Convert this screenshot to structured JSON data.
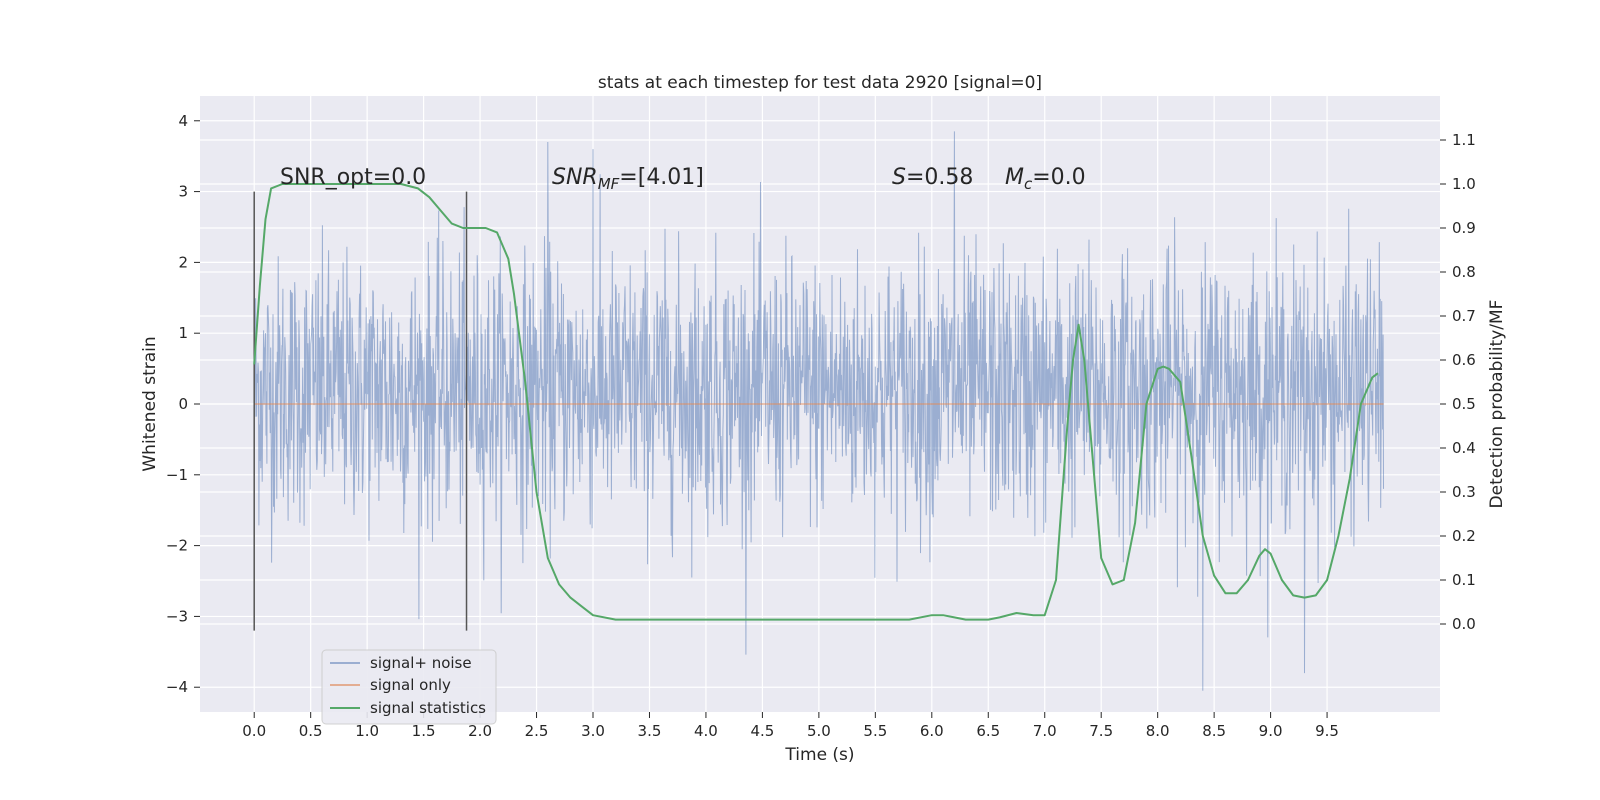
{
  "chart_data": {
    "type": "line",
    "title": "stats at each timestep for test data 2920 [signal=0]",
    "xlabel": "Time (s)",
    "ylabel": "Whitened strain",
    "y2label": "Detection probability/MF",
    "xlim": [
      -0.48,
      10.5
    ],
    "ylim": [
      -4.35,
      4.35
    ],
    "y2lim": [
      -0.2,
      1.2
    ],
    "x_ticks": [
      0.0,
      0.5,
      1.0,
      1.5,
      2.0,
      2.5,
      3.0,
      3.5,
      4.0,
      4.5,
      5.0,
      5.5,
      6.0,
      6.5,
      7.0,
      7.5,
      8.0,
      8.5,
      9.0,
      9.5
    ],
    "x_tick_labels": [
      "0.0",
      "0.5",
      "1.0",
      "1.5",
      "2.0",
      "2.5",
      "3.0",
      "3.5",
      "4.0",
      "4.5",
      "5.0",
      "5.5",
      "6.0",
      "6.5",
      "7.0",
      "7.5",
      "8.0",
      "8.5",
      "9.0",
      "9.5"
    ],
    "y_ticks": [
      -4,
      -3,
      -2,
      -1,
      0,
      1,
      2,
      3,
      4
    ],
    "y_tick_labels": [
      "−4",
      "−3",
      "−2",
      "−1",
      "0",
      "1",
      "2",
      "3",
      "4"
    ],
    "y2_ticks": [
      0.0,
      0.1,
      0.2,
      0.3,
      0.4,
      0.5,
      0.6,
      0.7,
      0.8,
      0.9,
      1.0,
      1.1
    ],
    "y2_tick_labels": [
      "0.0",
      "0.1",
      "0.2",
      "0.3",
      "0.4",
      "0.5",
      "0.6",
      "0.7",
      "0.8",
      "0.9",
      "1.0",
      "1.1"
    ],
    "grid": true,
    "legend_position": "lower-left",
    "series": [
      {
        "name": "signal+ noise",
        "axis": "left",
        "color": "#4c72b0",
        "kind": "noise",
        "x_range": [
          0.0,
          10.0
        ],
        "typical_envelope": [
          -1.3,
          1.7
        ],
        "extremes_x": [
          6.2,
          3.0,
          8.4,
          9.3,
          2.6
        ],
        "extremes_y": [
          3.85,
          3.6,
          -4.05,
          -3.8,
          3.7
        ]
      },
      {
        "name": "signal only",
        "axis": "left",
        "color": "#dd8452",
        "x": [
          0.0,
          10.0
        ],
        "y": [
          0.0,
          0.0
        ]
      },
      {
        "name": "signal statistics",
        "axis": "right",
        "color": "#55a868",
        "x": [
          0.0,
          0.05,
          0.1,
          0.15,
          0.25,
          0.5,
          1.0,
          1.3,
          1.45,
          1.55,
          1.65,
          1.75,
          1.85,
          1.95,
          2.05,
          2.15,
          2.25,
          2.3,
          2.4,
          2.5,
          2.6,
          2.7,
          2.8,
          2.9,
          3.0,
          3.2,
          3.5,
          3.8,
          4.0,
          4.5,
          5.0,
          5.5,
          5.8,
          6.0,
          6.1,
          6.2,
          6.3,
          6.5,
          6.6,
          6.75,
          6.9,
          7.0,
          7.1,
          7.2,
          7.25,
          7.3,
          7.35,
          7.4,
          7.5,
          7.6,
          7.7,
          7.8,
          7.9,
          8.0,
          8.05,
          8.1,
          8.2,
          8.3,
          8.4,
          8.5,
          8.6,
          8.7,
          8.8,
          8.9,
          8.95,
          9.0,
          9.1,
          9.2,
          9.3,
          9.4,
          9.5,
          9.6,
          9.7,
          9.8,
          9.9,
          9.95
        ],
        "y": [
          0.59,
          0.77,
          0.92,
          0.99,
          1.0,
          1.0,
          1.0,
          1.0,
          0.99,
          0.97,
          0.94,
          0.91,
          0.9,
          0.9,
          0.9,
          0.89,
          0.83,
          0.75,
          0.55,
          0.3,
          0.15,
          0.09,
          0.06,
          0.04,
          0.02,
          0.01,
          0.01,
          0.01,
          0.01,
          0.01,
          0.01,
          0.01,
          0.01,
          0.02,
          0.02,
          0.015,
          0.01,
          0.01,
          0.015,
          0.025,
          0.02,
          0.02,
          0.1,
          0.45,
          0.6,
          0.68,
          0.6,
          0.45,
          0.15,
          0.09,
          0.1,
          0.23,
          0.5,
          0.58,
          0.585,
          0.58,
          0.55,
          0.38,
          0.2,
          0.11,
          0.07,
          0.07,
          0.1,
          0.155,
          0.17,
          0.16,
          0.1,
          0.065,
          0.06,
          0.065,
          0.1,
          0.2,
          0.33,
          0.5,
          0.56,
          0.57
        ]
      }
    ],
    "vlines": [
      {
        "x": 0.0,
        "y_range": [
          -3.2,
          3.0
        ]
      },
      {
        "x": 1.88,
        "y_range": [
          -3.2,
          3.0
        ]
      }
    ],
    "annotations": [
      {
        "id": "snr-opt",
        "text": "SNR_opt=0.0",
        "x": 0.2,
        "y": 3.0
      },
      {
        "id": "snr-mf",
        "text": "=[4.01]",
        "math_base": "SNR",
        "math_sub": "MF",
        "x": 2.6,
        "y": 3.0
      },
      {
        "id": "stat",
        "text": "=0.58",
        "math_base": "S",
        "x": 5.6,
        "y": 3.0
      },
      {
        "id": "chirp-mass",
        "text": "=0.0",
        "math_base": "M",
        "math_sub": "c",
        "x": 6.6,
        "y": 3.0
      }
    ]
  }
}
